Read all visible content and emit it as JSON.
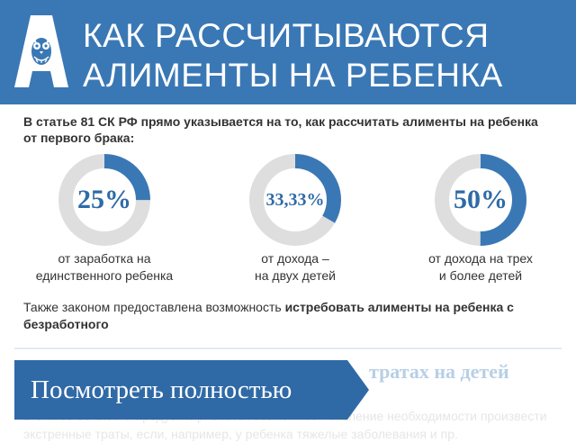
{
  "header": {
    "title_line1": "Как рассчитываются",
    "title_line2": "алименты на ребенка",
    "logo_icon": "owl-letter-a-logo",
    "background_color": "#3a78b5"
  },
  "intro_text": "В статье 81 СК РФ прямо указывается на то, как рассчитать алименты на ребенка от первого брака:",
  "stats": [
    {
      "percent_label": "25%",
      "fraction": 0.25,
      "caption_line1": "от заработка на",
      "caption_line2": "единственного ребенка"
    },
    {
      "percent_label": "33,33%",
      "fraction": 0.3333,
      "caption_line1": "от дохода –",
      "caption_line2": "на двух детей"
    },
    {
      "percent_label": "50%",
      "fraction": 0.5,
      "caption_line1": "от дохода на трех",
      "caption_line2": "и более детей"
    }
  ],
  "colors": {
    "ring_fill": "#3a78b5",
    "ring_track": "#dedede"
  },
  "also_text": {
    "plain": "Также законом предоставлена возможность ",
    "bold": "истребовать алименты на ребенка с безработного"
  },
  "faded_section": {
    "heading_visible": "тратах на детей",
    "text_line1": "В статье 86 СК РФ предусматривается возможное появление необходимости произвести",
    "text_line2": "экстренные траты, если, например, у ребенка тяжелые заболевания и пр."
  },
  "view_full_button": {
    "label": "Посмотреть полностью",
    "color": "#2f6aa6"
  }
}
